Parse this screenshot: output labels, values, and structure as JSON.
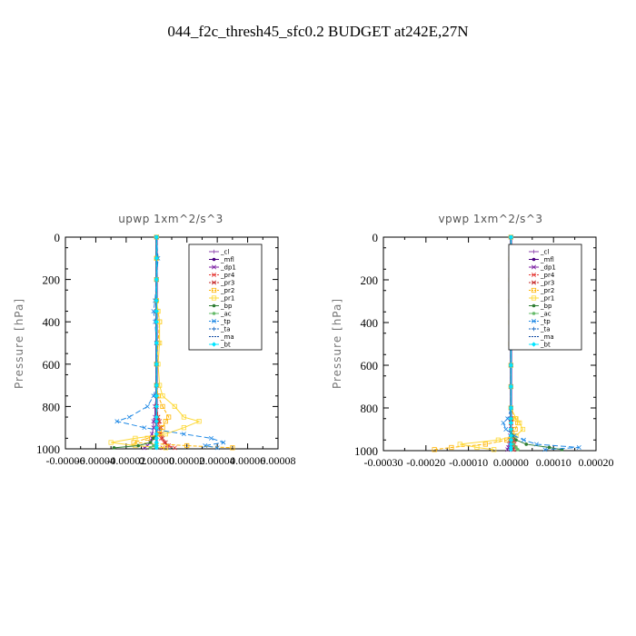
{
  "figure": {
    "title": "044_f2c_thresh45_sfc0.2  BUDGET at242E,27N"
  },
  "legend_entries": [
    "_cl",
    "_mfl",
    "_dp1",
    "_pr4",
    "_pr3",
    "_pr2",
    "_pr1",
    "_bp",
    "_ac",
    "_tp",
    "_ta",
    "_ma",
    "_bt"
  ],
  "chart_data": [
    {
      "type": "line",
      "title": "upwp   1xm^2/s^3",
      "ylabel": "Pressure  [hPa]",
      "ylim": [
        1000,
        0
      ],
      "y_ticks": [
        0,
        200,
        400,
        600,
        800,
        1000
      ],
      "xlim": [
        -6e-05,
        8e-05
      ],
      "x_ticks": [
        -6e-05,
        -4e-05,
        -2e-05,
        0.0,
        2e-05,
        4e-05,
        6e-05,
        8e-05
      ],
      "x_tick_labels": [
        "-0.00006",
        "-0.00004",
        "-0.00002",
        "0.00000",
        "0.00002",
        "0.00004",
        "0.00006",
        "0.00008"
      ],
      "grid": false,
      "legend_position": "top-right",
      "pressure": [
        0,
        100,
        200,
        300,
        350,
        400,
        500,
        600,
        700,
        750,
        800,
        850,
        870,
        900,
        930,
        950,
        970,
        985,
        995
      ],
      "series": [
        {
          "name": "_cl",
          "color": "#8e44ad",
          "marker": "+",
          "dash": "",
          "x": [
            0,
            0,
            0,
            0,
            0,
            0,
            0,
            0,
            0,
            0,
            0,
            0,
            0,
            0,
            0,
            0,
            0,
            0,
            0
          ]
        },
        {
          "name": "_mfl",
          "color": "#4b0082",
          "marker": "o",
          "dash": "",
          "x": [
            0,
            0,
            0,
            0,
            0,
            0,
            0,
            0,
            0,
            0,
            0,
            0,
            0,
            0,
            0,
            0,
            0,
            0,
            0
          ]
        },
        {
          "name": "_dp1",
          "color": "#7b1fa2",
          "marker": "x",
          "dash": "",
          "x": [
            0,
            0,
            0,
            0,
            0,
            0,
            0,
            0,
            0,
            0,
            -1e-06,
            -1e-06,
            -2e-06,
            -2e-06,
            -3e-06,
            -3e-06,
            -4e-06,
            -6e-06,
            -8e-06
          ]
        },
        {
          "name": "_pr4",
          "color": "#e53935",
          "marker": "x",
          "dash": "4,2",
          "x": [
            0,
            0,
            0,
            0,
            0,
            0,
            0,
            0,
            0,
            0,
            0,
            1e-06,
            1e-06,
            2e-06,
            2e-06,
            3e-06,
            5e-06,
            8e-06,
            1.2e-05
          ]
        },
        {
          "name": "_pr3",
          "color": "#c62828",
          "marker": "x",
          "dash": "2,2",
          "x": [
            0,
            0,
            0,
            0,
            0,
            0,
            0,
            0,
            0,
            0,
            0,
            1e-06,
            2e-06,
            3e-06,
            3e-06,
            4e-06,
            6e-06,
            7e-06,
            4e-06
          ]
        },
        {
          "name": "_pr2",
          "color": "#ffb300",
          "marker": "s",
          "dash": "4,2",
          "x": [
            0,
            0,
            0,
            0,
            1e-06,
            2e-06,
            1e-06,
            0,
            0,
            1e-06,
            4e-06,
            8e-06,
            6e-06,
            4e-06,
            2e-06,
            -6e-06,
            -1.5e-05,
            2e-05,
            5e-05
          ]
        },
        {
          "name": "_pr1",
          "color": "#fdd835",
          "marker": "s",
          "dash": "",
          "x": [
            0,
            0,
            0,
            0,
            1e-06,
            2e-06,
            2e-06,
            1e-06,
            2e-06,
            4e-06,
            1.2e-05,
            1.8e-05,
            2.8e-05,
            1.8e-05,
            6e-06,
            -1.4e-05,
            -3e-05,
            -1.4e-05,
            6e-06
          ]
        },
        {
          "name": "_bp",
          "color": "#2e7d32",
          "marker": "o",
          "dash": "",
          "x": [
            0,
            0,
            0,
            0,
            0,
            0,
            0,
            0,
            0,
            0,
            0,
            0,
            0,
            0,
            0,
            -2e-06,
            -4e-06,
            -1.2e-05,
            -2.8e-05
          ]
        },
        {
          "name": "_ac",
          "color": "#66bb6a",
          "marker": "o",
          "dash": "",
          "x": [
            0,
            0,
            0,
            0,
            0,
            0,
            0,
            0,
            0,
            0,
            0,
            0,
            0,
            0,
            0,
            0,
            0,
            -2e-06,
            -4e-06
          ]
        },
        {
          "name": "_tp",
          "color": "#1e88e5",
          "marker": "x",
          "dash": "6,3",
          "x": [
            0,
            1e-06,
            0,
            -1e-06,
            -2e-06,
            -1e-06,
            0,
            0,
            0,
            -2e-06,
            -6e-06,
            -1.8e-05,
            -2.6e-05,
            -8e-06,
            1.8e-05,
            3.6e-05,
            4.4e-05,
            3.2e-05,
            4e-05
          ]
        },
        {
          "name": "_ta",
          "color": "#1565c0",
          "marker": "+",
          "dash": "1,2",
          "x": [
            0,
            0,
            0,
            0,
            0,
            0,
            0,
            0,
            0,
            0,
            0,
            0,
            0,
            0,
            0,
            0,
            0,
            0,
            0
          ]
        },
        {
          "name": "_ma",
          "color": "#0d47a1",
          "marker": "",
          "dash": "6,2",
          "x": [
            0,
            0,
            0,
            0,
            0,
            0,
            0,
            0,
            0,
            0,
            0,
            0,
            0,
            0,
            0,
            0,
            0,
            0,
            0
          ]
        },
        {
          "name": "_bt",
          "color": "#00e5ff",
          "marker": "D",
          "dash": "",
          "x": [
            0,
            0,
            0,
            0,
            0,
            0,
            0,
            0,
            0,
            0,
            0,
            0,
            0,
            0,
            0,
            0,
            0,
            0,
            0
          ]
        }
      ]
    },
    {
      "type": "line",
      "title": "vpwp   1xm^2/s^3",
      "ylabel": "Pressure  [hPa]",
      "ylim": [
        1000,
        0
      ],
      "y_ticks": [
        0,
        200,
        400,
        600,
        800,
        1000
      ],
      "xlim": [
        -0.0003,
        0.0002
      ],
      "x_ticks": [
        -0.0003,
        -0.0002,
        -0.0001,
        0.0,
        0.0001,
        0.0002
      ],
      "x_tick_labels": [
        "-0.00030",
        "-0.00020",
        "-0.00010",
        "0.00000",
        "0.00010",
        "0.00020"
      ],
      "grid": false,
      "legend_position": "top-right",
      "pressure": [
        0,
        100,
        200,
        300,
        400,
        500,
        600,
        700,
        800,
        850,
        870,
        900,
        930,
        950,
        970,
        985,
        995
      ],
      "series": [
        {
          "name": "_cl",
          "color": "#8e44ad",
          "marker": "+",
          "dash": "",
          "x": [
            0,
            0,
            0,
            0,
            0,
            0,
            0,
            0,
            0,
            0,
            0,
            0,
            0,
            0,
            0,
            0,
            0
          ]
        },
        {
          "name": "_mfl",
          "color": "#4b0082",
          "marker": "o",
          "dash": "",
          "x": [
            0,
            0,
            0,
            0,
            0,
            0,
            0,
            0,
            0,
            0,
            0,
            0,
            0,
            0,
            0,
            0,
            0
          ]
        },
        {
          "name": "_dp1",
          "color": "#7b1fa2",
          "marker": "x",
          "dash": "",
          "x": [
            0,
            0,
            0,
            0,
            0,
            0,
            0,
            0,
            0,
            0,
            0,
            0,
            -2e-06,
            -3e-06,
            -4e-06,
            -6e-06,
            -8e-06
          ]
        },
        {
          "name": "_pr4",
          "color": "#e53935",
          "marker": "x",
          "dash": "4,2",
          "x": [
            0,
            0,
            0,
            0,
            0,
            0,
            0,
            0,
            0,
            0,
            0,
            2e-06,
            4e-06,
            6e-06,
            8e-06,
            1e-05,
            6e-06
          ]
        },
        {
          "name": "_pr3",
          "color": "#c62828",
          "marker": "x",
          "dash": "2,2",
          "x": [
            0,
            0,
            0,
            0,
            0,
            0,
            0,
            0,
            0,
            0,
            0,
            2e-06,
            4e-06,
            4e-06,
            6e-06,
            6e-06,
            4e-06
          ]
        },
        {
          "name": "_pr2",
          "color": "#ffb300",
          "marker": "s",
          "dash": "4,2",
          "x": [
            0,
            0,
            0,
            0,
            0,
            0,
            0,
            0,
            0,
            1e-05,
            1.6e-05,
            1e-05,
            4e-06,
            -1e-05,
            -6e-05,
            -0.00014,
            -0.00018
          ]
        },
        {
          "name": "_pr1",
          "color": "#fdd835",
          "marker": "s",
          "dash": "",
          "x": [
            0,
            0,
            0,
            0,
            0,
            0,
            0,
            0,
            0,
            1.2e-05,
            2e-05,
            2.8e-05,
            1.2e-05,
            -3e-05,
            -0.00012,
            -8e-05,
            -4e-05
          ]
        },
        {
          "name": "_bp",
          "color": "#2e7d32",
          "marker": "o",
          "dash": "",
          "x": [
            0,
            0,
            0,
            0,
            0,
            0,
            0,
            0,
            0,
            0,
            0,
            0,
            4e-06,
            1.2e-05,
            3.6e-05,
            9e-05,
            0.00012
          ]
        },
        {
          "name": "_ac",
          "color": "#66bb6a",
          "marker": "o",
          "dash": "",
          "x": [
            0,
            0,
            0,
            0,
            0,
            0,
            0,
            0,
            0,
            0,
            0,
            0,
            0,
            2e-06,
            6e-06,
            1.2e-05,
            1.6e-05
          ]
        },
        {
          "name": "_tp",
          "color": "#1e88e5",
          "marker": "x",
          "dash": "6,3",
          "x": [
            0,
            0,
            0,
            0,
            0,
            0,
            0,
            0,
            0,
            -8e-06,
            -1.8e-05,
            -1.2e-05,
            8e-06,
            3e-05,
            6e-05,
            0.00016,
            8e-05
          ]
        },
        {
          "name": "_ta",
          "color": "#1565c0",
          "marker": "+",
          "dash": "1,2",
          "x": [
            0,
            0,
            0,
            0,
            0,
            0,
            0,
            0,
            0,
            0,
            0,
            0,
            0,
            0,
            0,
            0,
            0
          ]
        },
        {
          "name": "_ma",
          "color": "#0d47a1",
          "marker": "",
          "dash": "6,2",
          "x": [
            0,
            0,
            0,
            0,
            0,
            0,
            0,
            0,
            0,
            0,
            0,
            0,
            0,
            0,
            0,
            0,
            0
          ]
        },
        {
          "name": "_bt",
          "color": "#00e5ff",
          "marker": "D",
          "dash": "",
          "x": [
            0,
            0,
            0,
            0,
            0,
            0,
            0,
            0,
            0,
            0,
            0,
            0,
            0,
            0,
            0,
            0,
            0
          ]
        }
      ]
    }
  ]
}
